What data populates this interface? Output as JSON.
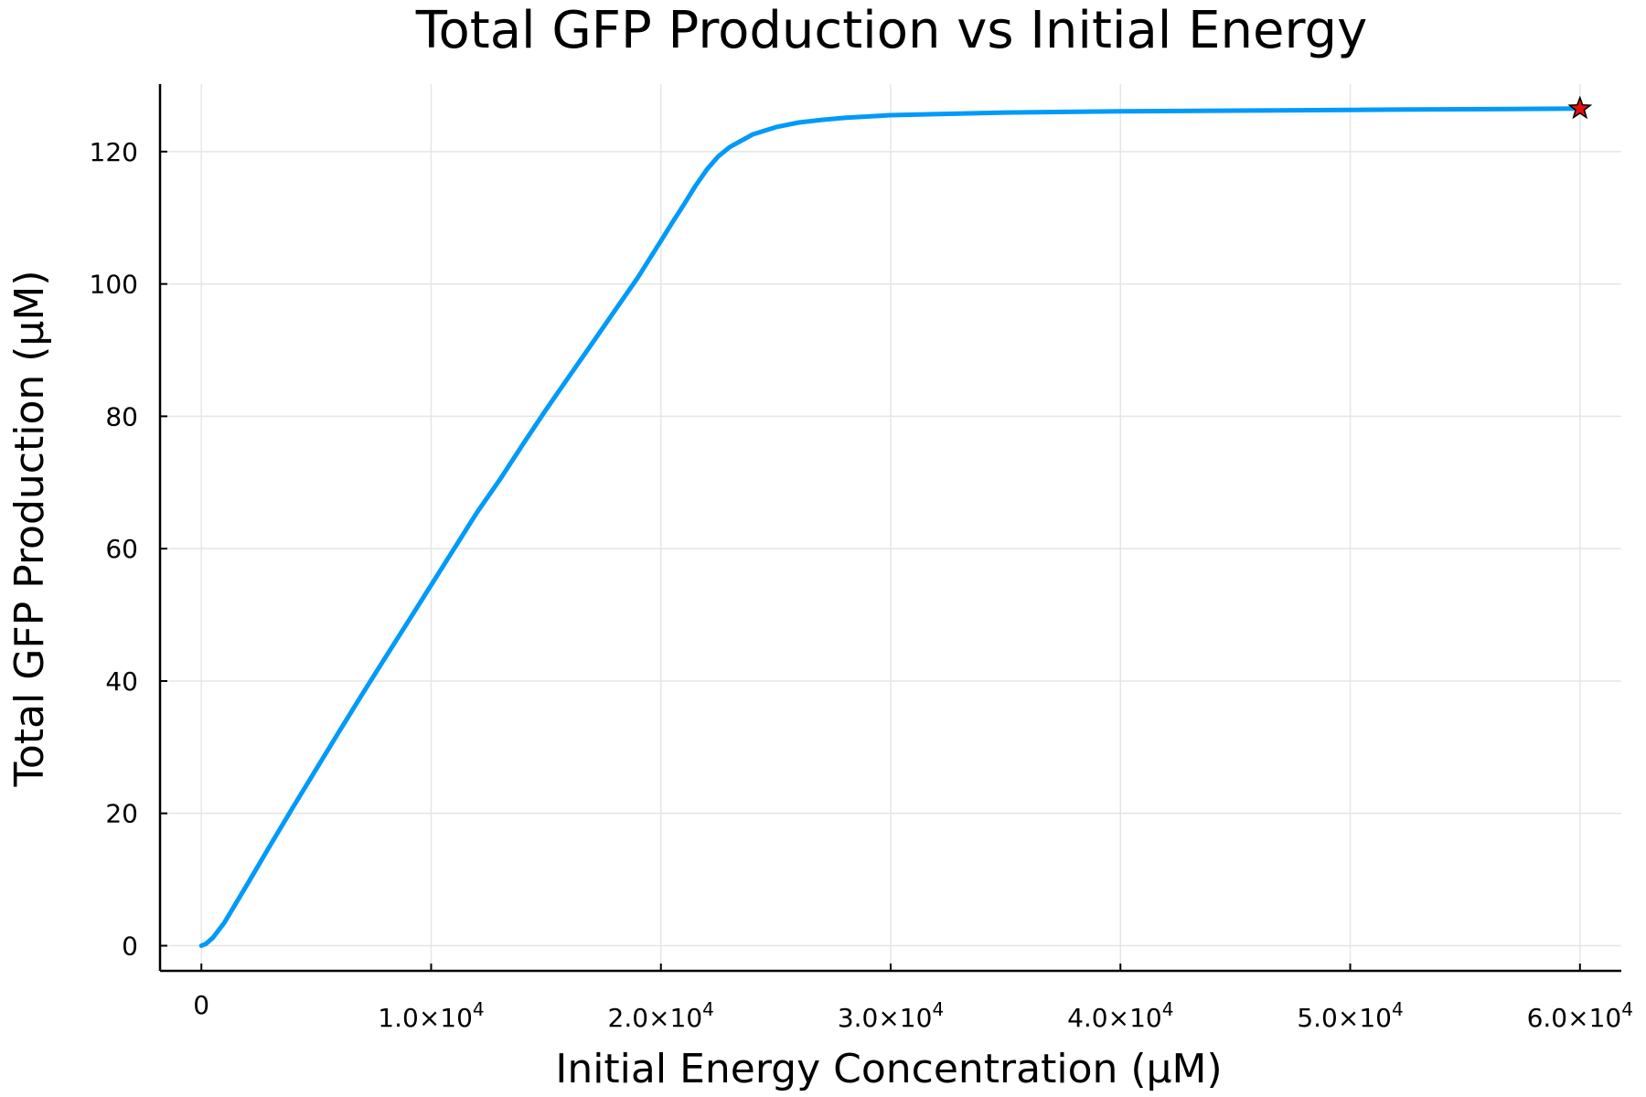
{
  "chart_data": {
    "type": "line",
    "title": "Total GFP Production vs Initial Energy",
    "xlabel": "Initial Energy Concentration (μM)",
    "ylabel": "Total GFP Production (μM)",
    "xlim": [
      -1800,
      61800
    ],
    "ylim": [
      -3.8,
      130.2
    ],
    "grid": true,
    "legend": "none",
    "colors": {
      "series": "#009af9",
      "marker": "#e01010",
      "grid": "#e5e5e5",
      "axis": "#000000"
    },
    "x_ticks": [
      {
        "value": 0,
        "mantissa": "0",
        "exponent": ""
      },
      {
        "value": 10000,
        "mantissa": "1.0×10",
        "exponent": "4"
      },
      {
        "value": 20000,
        "mantissa": "2.0×10",
        "exponent": "4"
      },
      {
        "value": 30000,
        "mantissa": "3.0×10",
        "exponent": "4"
      },
      {
        "value": 40000,
        "mantissa": "4.0×10",
        "exponent": "4"
      },
      {
        "value": 50000,
        "mantissa": "5.0×10",
        "exponent": "4"
      },
      {
        "value": 60000,
        "mantissa": "6.0×10",
        "exponent": "4"
      }
    ],
    "y_ticks": [
      {
        "value": 0,
        "label": "0"
      },
      {
        "value": 20,
        "label": "20"
      },
      {
        "value": 40,
        "label": "40"
      },
      {
        "value": 60,
        "label": "60"
      },
      {
        "value": 80,
        "label": "80"
      },
      {
        "value": 100,
        "label": "100"
      },
      {
        "value": 120,
        "label": "120"
      }
    ],
    "series": [
      {
        "x": [
          0,
          200,
          500,
          1000,
          2000,
          3000,
          4000,
          5000,
          6000,
          7000,
          8000,
          9000,
          10000,
          11000,
          12000,
          13000,
          14000,
          15000,
          16000,
          17000,
          18000,
          19000,
          20000,
          20500,
          21000,
          21500,
          22000,
          22500,
          23000,
          24000,
          25000,
          26000,
          27000,
          28000,
          30000,
          35000,
          40000,
          45000,
          50000,
          55000,
          60000
        ],
        "y": [
          0,
          0.3,
          1.2,
          3.5,
          9.3,
          15.2,
          21,
          26.7,
          32.4,
          38,
          43.5,
          49,
          54.5,
          60,
          65.5,
          70.5,
          75.8,
          81,
          86,
          91,
          96,
          101,
          106.5,
          109.3,
          112,
          114.8,
          117.3,
          119.3,
          120.7,
          122.6,
          123.7,
          124.4,
          124.8,
          125.1,
          125.5,
          125.9,
          126.1,
          126.2,
          126.3,
          126.4,
          126.5
        ]
      }
    ],
    "markers": [
      {
        "x": 60000,
        "y": 126.5,
        "shape": "star"
      }
    ]
  }
}
